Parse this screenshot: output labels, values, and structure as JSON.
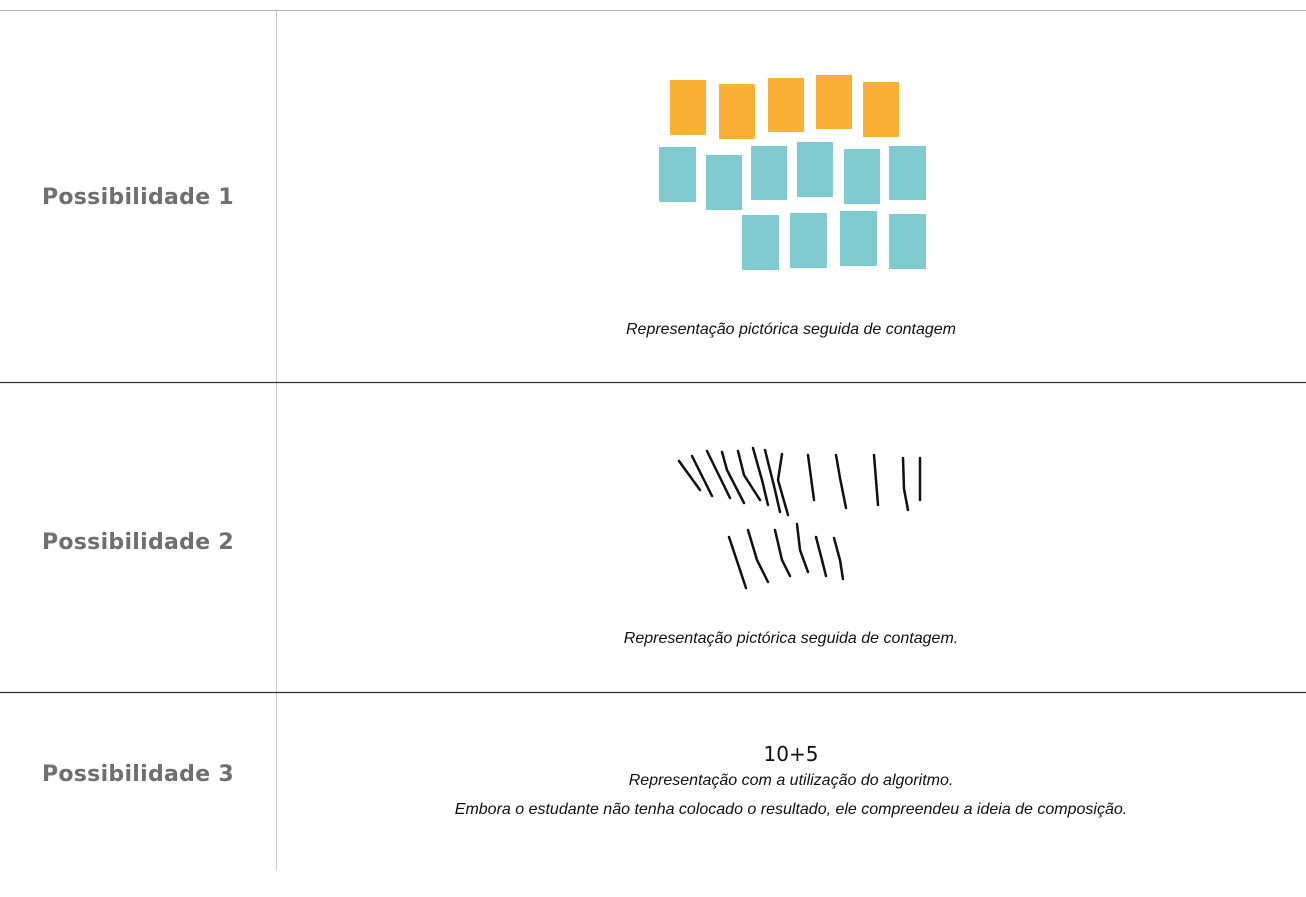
{
  "rows": [
    {
      "label": "Possibilidade 1",
      "captions": [
        "Representação pictórica seguida de contagem"
      ]
    },
    {
      "label": "Possibilidade 2",
      "captions": [
        "Representação pictórica seguida de contagem."
      ]
    },
    {
      "label": "Possibilidade 3",
      "expression": "10+5",
      "captions": [
        "Representação com a utilização do algoritmo.",
        "Embora o estudante não tenha colocado o resultado, ele compreendeu a ideia de composição."
      ]
    }
  ]
}
